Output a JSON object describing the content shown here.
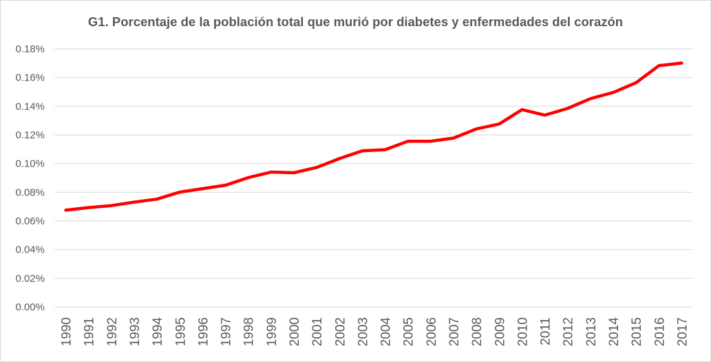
{
  "chart_data": {
    "type": "line",
    "title": "G1. Porcentaje de la población total que murió por diabetes y enfermedades del corazón",
    "xlabel": "",
    "ylabel": "",
    "ylim": [
      0,
      0.18
    ],
    "y_ticks": [
      "0.00%",
      "0.02%",
      "0.04%",
      "0.06%",
      "0.08%",
      "0.10%",
      "0.12%",
      "0.14%",
      "0.16%",
      "0.18%"
    ],
    "categories": [
      "1990",
      "1991",
      "1992",
      "1993",
      "1994",
      "1995",
      "1996",
      "1997",
      "1998",
      "1999",
      "2000",
      "2001",
      "2002",
      "2003",
      "2004",
      "2005",
      "2006",
      "2007",
      "2008",
      "2009",
      "2010",
      "2011",
      "2012",
      "2013",
      "2014",
      "2015",
      "2016",
      "2017"
    ],
    "series": [
      {
        "values": [
          0.0675,
          0.0693,
          0.0707,
          0.0731,
          0.0752,
          0.0801,
          0.0825,
          0.0849,
          0.0902,
          0.0941,
          0.0936,
          0.0973,
          0.1035,
          0.1089,
          0.1097,
          0.1156,
          0.1156,
          0.1178,
          0.1242,
          0.1276,
          0.1376,
          0.1338,
          0.1385,
          0.1453,
          0.1496,
          0.1564,
          0.1683,
          0.1701
        ],
        "color": "#ff0000"
      }
    ],
    "grid": true,
    "legend": "none"
  }
}
